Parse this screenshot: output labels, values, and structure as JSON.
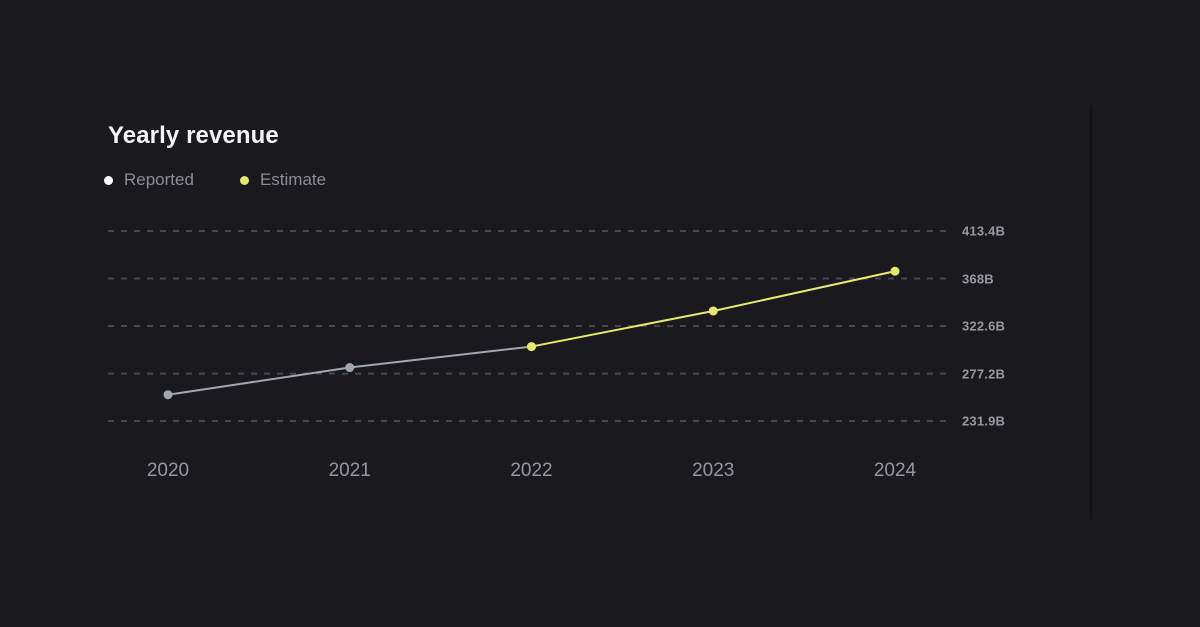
{
  "page": {
    "background": "#1a1a1e"
  },
  "chart": {
    "title": "Yearly revenue",
    "legend": [
      {
        "name": "reported",
        "label": "Reported",
        "dot_color": "#ffffff"
      },
      {
        "name": "estimate",
        "label": "Estimate",
        "dot_color": "#e5ea6e"
      }
    ]
  },
  "chart_data": {
    "type": "line",
    "title": "Yearly revenue",
    "x": [
      "2020",
      "2021",
      "2022",
      "2023",
      "2024"
    ],
    "series": [
      {
        "name": "Reported",
        "color": "#a0a7b1",
        "dot_color": "#a0a7b1",
        "values": [
          257,
          283,
          303,
          null,
          null
        ]
      },
      {
        "name": "Estimate",
        "color": "#e5ea6e",
        "dot_color": "#e5ea6e",
        "values": [
          null,
          null,
          303,
          337,
          375
        ]
      }
    ],
    "unit": "B",
    "y_ticks": [
      231.9,
      277.2,
      322.6,
      368,
      413.4
    ],
    "y_tick_labels": [
      "231.9B",
      "277.2B",
      "322.6B",
      "368B",
      "413.4B"
    ],
    "ylim": [
      231.9,
      413.4
    ],
    "grid": "horizontal-dashed",
    "legend_position": "top-left",
    "notes": "Estimate line continues from the 2022 data point; values in billions read off dashed gridlines"
  },
  "colors": {
    "background": "#1a1a1e",
    "grid": "#47474e",
    "title": "#f3f3f5",
    "legend_text": "#8b8b93",
    "y_label_text": "#98989f",
    "x_label_text": "#96969e",
    "reported_line": "#a0a7b1",
    "estimate_line": "#e5ea6e",
    "divider": "#121216"
  }
}
